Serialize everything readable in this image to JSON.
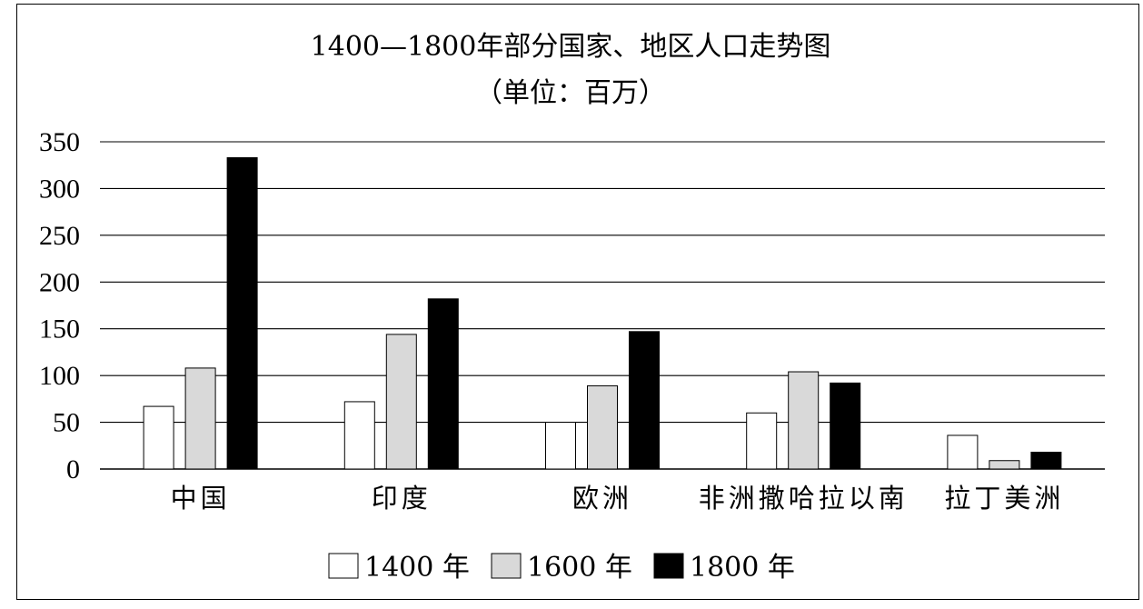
{
  "chart_data": {
    "type": "bar",
    "title": "1400—1800年部分国家、地区人口走势图",
    "subtitle": "（单位：百万）",
    "categories": [
      "中国",
      "印度",
      "欧洲",
      "非洲撒哈拉以南",
      "拉丁美洲"
    ],
    "series": [
      {
        "name": "1400 年",
        "values": [
          67,
          72,
          50,
          60,
          36
        ],
        "color": "#ffffff"
      },
      {
        "name": "1600 年",
        "values": [
          108,
          144,
          89,
          104,
          9
        ],
        "color": "#d9d9d9"
      },
      {
        "name": "1800 年",
        "values": [
          333,
          182,
          147,
          92,
          18
        ],
        "color": "#000000"
      }
    ],
    "yticks": [
      "0",
      "50",
      "100",
      "150",
      "200",
      "250",
      "300",
      "350"
    ],
    "ylim": [
      0,
      350
    ],
    "grid": true,
    "legend_position": "bottom"
  }
}
